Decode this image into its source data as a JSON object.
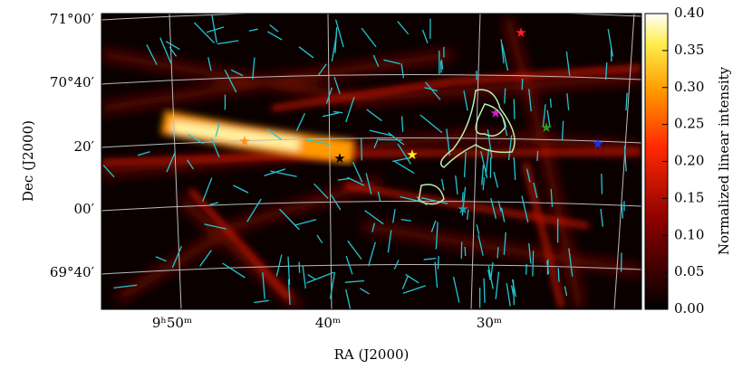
{
  "chart_data": {
    "type": "heatmap",
    "x_label": "RA (J2000)",
    "y_label": "Dec (J2000)",
    "x_tick_labels": [
      "9ʰ50ᵐ",
      "40ᵐ",
      "30ᵐ"
    ],
    "y_tick_labels": [
      "71°00′",
      "70°40′",
      "20′",
      "00′",
      "69°40′"
    ],
    "colorbar": {
      "label": "Normalized linear intensity",
      "ylim": [
        0,
        0.4
      ],
      "yticks": [
        {
          "value": 0,
          "label": "0.00"
        },
        {
          "value": 0.05,
          "label": "0.05"
        },
        {
          "value": 0.1,
          "label": "0.10"
        },
        {
          "value": 0.15,
          "label": "0.15"
        },
        {
          "value": 0.2,
          "label": "0.20"
        },
        {
          "value": 0.25,
          "label": "0.25"
        },
        {
          "value": 0.3,
          "label": "0.30"
        },
        {
          "value": 0.35,
          "label": "0.35"
        },
        {
          "value": 0.4,
          "label": "0.40"
        }
      ]
    }
  }
}
